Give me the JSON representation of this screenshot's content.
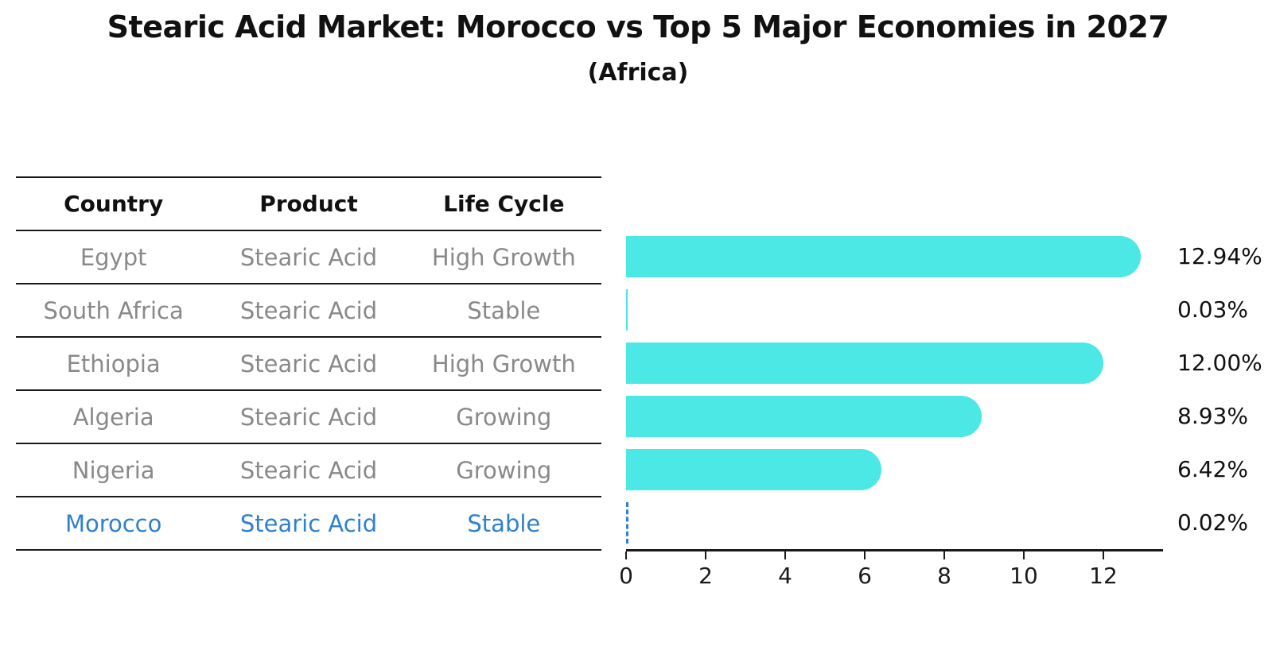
{
  "header": {
    "title": "Stearic Acid Market: Morocco vs Top 5 Major Economies in 2027",
    "subtitle": "(Africa)"
  },
  "table": {
    "headers": {
      "country": "Country",
      "product": "Product",
      "life_cycle": "Life Cycle"
    },
    "rows": [
      {
        "country": "Egypt",
        "product": "Stearic Acid",
        "life_cycle": "High Growth",
        "highlight": false
      },
      {
        "country": "South Africa",
        "product": "Stearic Acid",
        "life_cycle": "Stable",
        "highlight": false
      },
      {
        "country": "Ethiopia",
        "product": "Stearic Acid",
        "life_cycle": "High Growth",
        "highlight": false
      },
      {
        "country": "Algeria",
        "product": "Stearic Acid",
        "life_cycle": "Growing",
        "highlight": false
      },
      {
        "country": "Nigeria",
        "product": "Stearic Acid",
        "life_cycle": "Growing",
        "highlight": false
      },
      {
        "country": "Morocco",
        "product": "Stearic Acid",
        "life_cycle": "Stable",
        "highlight": true
      }
    ]
  },
  "chart_data": {
    "type": "bar",
    "orientation": "horizontal",
    "title": "Stearic Acid Market: Morocco vs Top 5 Major Economies in 2027",
    "subtitle": "(Africa)",
    "categories": [
      "Egypt",
      "South Africa",
      "Ethiopia",
      "Algeria",
      "Nigeria",
      "Morocco"
    ],
    "values": [
      12.94,
      0.03,
      12.0,
      8.93,
      6.42,
      0.02
    ],
    "value_labels": [
      "12.94%",
      "0.03%",
      "12.00%",
      "8.93%",
      "6.42%",
      "0.02%"
    ],
    "xlim": [
      0,
      13.5
    ],
    "xticks": [
      "0",
      "2",
      "4",
      "6",
      "8",
      "10",
      "12"
    ],
    "grid": false,
    "legend": "none",
    "bar_color": "#4BE8E6",
    "highlight": {
      "index": 5,
      "color": "#2F80CD",
      "style": "dashed-outline"
    },
    "colors": {
      "muted_text": "#898989",
      "axis_line": "#1a1a1a",
      "label_text": "#111111"
    }
  }
}
